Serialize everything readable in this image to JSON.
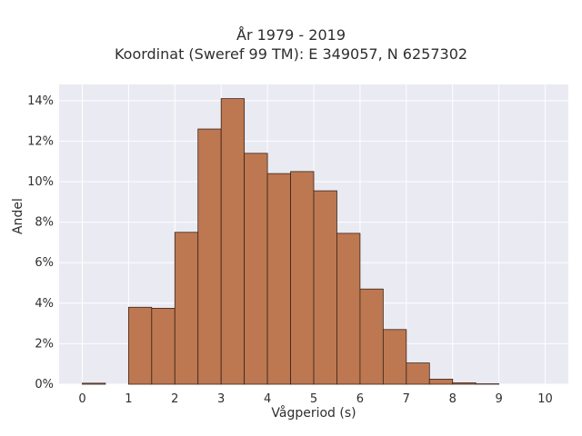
{
  "chart_data": {
    "type": "bar",
    "title_lines": [
      "År 1979 - 2019",
      "Koordinat (Sweref 99 TM): E 349057, N 6257302"
    ],
    "xlabel": "Vågperiod (s)",
    "ylabel": "Andel",
    "bin_width": 0.5,
    "bin_starts": [
      0,
      0.5,
      1,
      1.5,
      2,
      2.5,
      3,
      3.5,
      4,
      4.5,
      5,
      5.5,
      6,
      6.5,
      7,
      7.5,
      8,
      8.5,
      9,
      9.5
    ],
    "values": [
      0.05,
      0.0,
      3.8,
      3.75,
      7.5,
      12.6,
      14.1,
      11.4,
      10.4,
      10.5,
      9.55,
      7.45,
      4.7,
      2.7,
      1.05,
      0.25,
      0.07,
      0.02,
      0.0,
      0.0
    ],
    "x_ticks": [
      "0",
      "1",
      "2",
      "3",
      "4",
      "5",
      "6",
      "7",
      "8",
      "9",
      "10"
    ],
    "y_ticks": [
      "0%",
      "2%",
      "4%",
      "6%",
      "8%",
      "10%",
      "12%",
      "14%"
    ],
    "xlim": [
      -0.5,
      10.5
    ],
    "ylim": [
      0,
      14.8
    ],
    "grid": true,
    "bar_color": "#bd7851",
    "bar_edge_color": "#3a2418",
    "plot_background": "#eaeaf2"
  }
}
